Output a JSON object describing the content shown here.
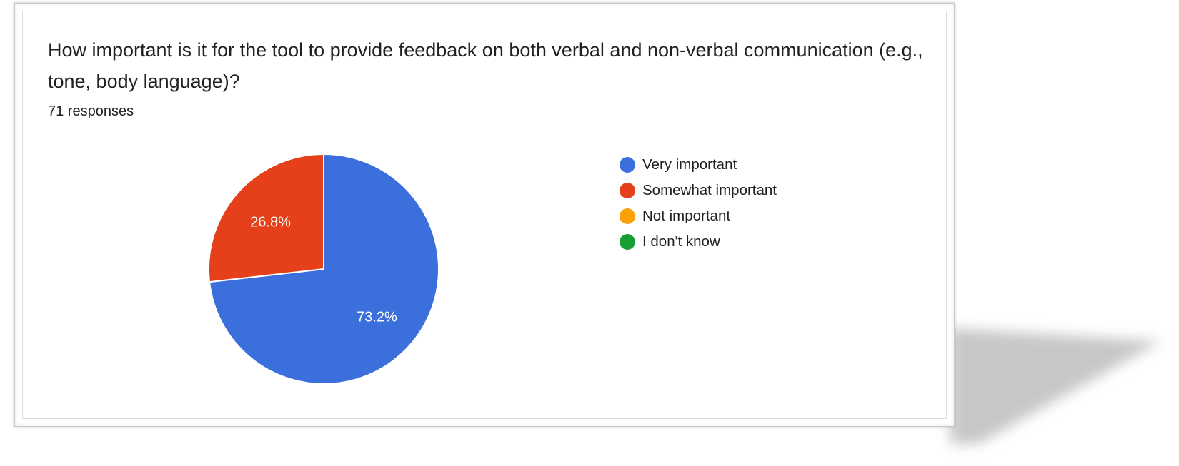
{
  "question": "How important is it for the tool to provide feedback on both verbal and non-verbal communication (e.g., tone, body language)?",
  "responses": "71 responses",
  "chart_data": {
    "type": "pie",
    "categories": [
      "Very important",
      "Somewhat important",
      "Not important",
      "I don't know"
    ],
    "values": [
      73.2,
      26.8,
      0,
      0
    ],
    "data_labels": [
      "73.2%",
      "26.8%",
      "",
      ""
    ],
    "colors": [
      "#3b6fdc",
      "#e6401b",
      "#f9a207",
      "#179f33"
    ],
    "legend": "right"
  }
}
